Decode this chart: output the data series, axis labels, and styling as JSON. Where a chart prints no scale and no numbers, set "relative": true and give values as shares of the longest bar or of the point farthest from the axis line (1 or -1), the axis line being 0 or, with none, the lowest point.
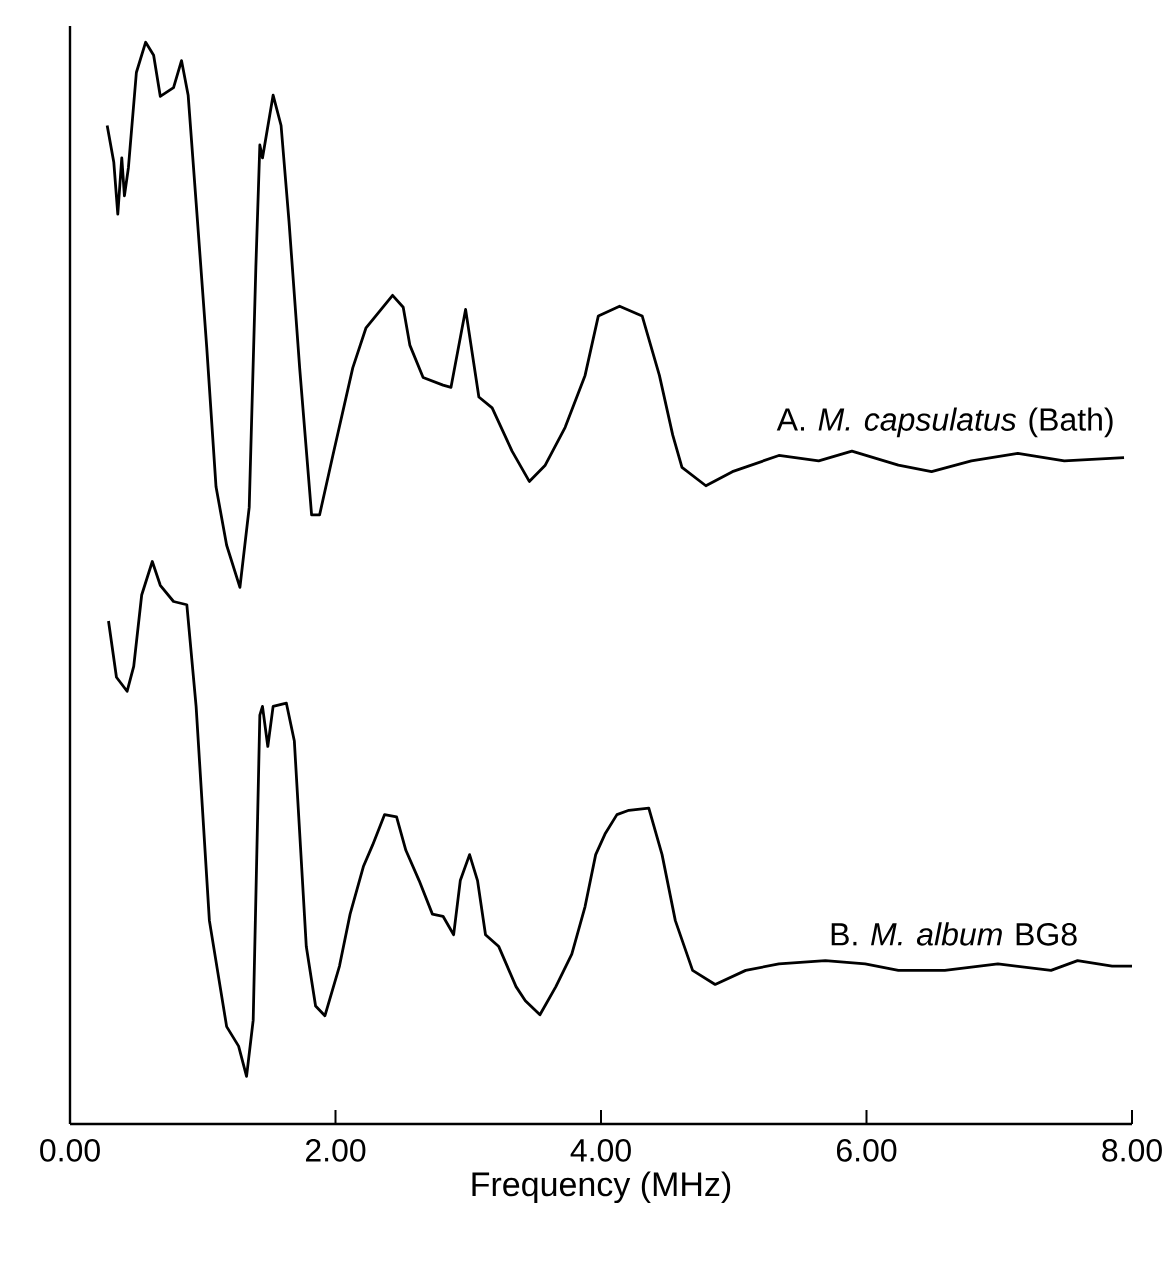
{
  "chart_data": {
    "type": "line",
    "relative": true,
    "xlabel": "Frequency (MHz)",
    "xlim": [
      0,
      8
    ],
    "xticks": [
      {
        "value": 0,
        "label": "0.00"
      },
      {
        "value": 2,
        "label": "2.00"
      },
      {
        "value": 4,
        "label": "4.00"
      },
      {
        "value": 6,
        "label": "6.00"
      },
      {
        "value": 8,
        "label": "8.00"
      }
    ],
    "grid": false,
    "legend": false,
    "marker": "none",
    "line_style": "solid",
    "series": [
      {
        "name": "A.  *M. capsulatus* (Bath)",
        "color": "#000000",
        "x": [
          0.28,
          0.33,
          0.36,
          0.39,
          0.41,
          0.44,
          0.5,
          0.57,
          0.63,
          0.68,
          0.78,
          0.84,
          0.89,
          0.95,
          1.03,
          1.1,
          1.18,
          1.28,
          1.35,
          1.4,
          1.43,
          1.45,
          1.53,
          1.59,
          1.65,
          1.73,
          1.82,
          1.88,
          1.98,
          2.13,
          2.23,
          2.33,
          2.43,
          2.51,
          2.56,
          2.66,
          2.81,
          2.87,
          2.98,
          3.08,
          3.18,
          3.33,
          3.46,
          3.58,
          3.73,
          3.88,
          3.98,
          4.14,
          4.31,
          4.44,
          4.54,
          4.61,
          4.79,
          4.99,
          5.34,
          5.64,
          5.89,
          6.24,
          6.49,
          6.79,
          7.14,
          7.49,
          7.94
        ],
        "values": [
          0.923,
          0.889,
          0.841,
          0.893,
          0.858,
          0.884,
          0.972,
          1.0,
          0.988,
          0.95,
          0.958,
          0.983,
          0.951,
          0.852,
          0.718,
          0.589,
          0.535,
          0.496,
          0.57,
          0.792,
          0.905,
          0.893,
          0.951,
          0.923,
          0.834,
          0.699,
          0.563,
          0.563,
          0.618,
          0.699,
          0.736,
          0.751,
          0.766,
          0.755,
          0.72,
          0.69,
          0.683,
          0.681,
          0.753,
          0.672,
          0.662,
          0.622,
          0.594,
          0.609,
          0.644,
          0.692,
          0.747,
          0.756,
          0.747,
          0.692,
          0.637,
          0.607,
          0.59,
          0.603,
          0.618,
          0.613,
          0.622,
          0.609,
          0.603,
          0.613,
          0.62,
          0.613,
          0.616
        ]
      },
      {
        "name": "B. *M. album* BG8",
        "color": "#000000",
        "x": [
          0.29,
          0.35,
          0.43,
          0.48,
          0.54,
          0.62,
          0.68,
          0.78,
          0.88,
          0.95,
          1.05,
          1.18,
          1.27,
          1.33,
          1.38,
          1.43,
          1.45,
          1.49,
          1.53,
          1.63,
          1.69,
          1.78,
          1.85,
          1.92,
          2.03,
          2.11,
          2.21,
          2.28,
          2.37,
          2.46,
          2.53,
          2.63,
          2.73,
          2.81,
          2.89,
          2.94,
          3.01,
          3.07,
          3.13,
          3.23,
          3.36,
          3.43,
          3.54,
          3.66,
          3.78,
          3.88,
          3.96,
          4.03,
          4.12,
          4.21,
          4.36,
          4.46,
          4.56,
          4.69,
          4.86,
          5.09,
          5.34,
          5.69,
          5.99,
          6.24,
          6.59,
          6.99,
          7.39,
          7.59,
          7.85,
          8.0
        ],
        "values": [
          0.465,
          0.413,
          0.4,
          0.423,
          0.489,
          0.52,
          0.498,
          0.483,
          0.48,
          0.386,
          0.188,
          0.09,
          0.072,
          0.044,
          0.096,
          0.378,
          0.386,
          0.349,
          0.386,
          0.389,
          0.354,
          0.164,
          0.109,
          0.1,
          0.146,
          0.194,
          0.238,
          0.258,
          0.286,
          0.284,
          0.253,
          0.225,
          0.194,
          0.192,
          0.175,
          0.225,
          0.249,
          0.225,
          0.175,
          0.164,
          0.127,
          0.114,
          0.101,
          0.127,
          0.157,
          0.201,
          0.249,
          0.268,
          0.286,
          0.29,
          0.292,
          0.249,
          0.188,
          0.142,
          0.129,
          0.142,
          0.148,
          0.151,
          0.148,
          0.142,
          0.142,
          0.148,
          0.142,
          0.151,
          0.146,
          0.146
        ]
      }
    ]
  }
}
